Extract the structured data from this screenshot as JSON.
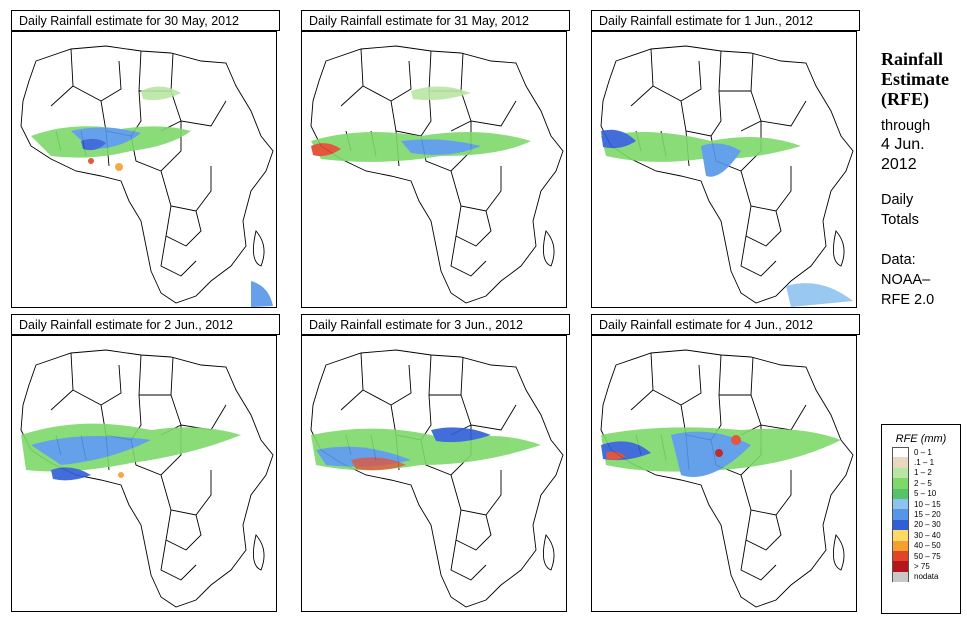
{
  "panels": [
    {
      "title": "Daily Rainfall estimate for  30 May, 2012"
    },
    {
      "title": "Daily Rainfall estimate for  31 May, 2012"
    },
    {
      "title": "Daily Rainfall estimate for  1 Jun., 2012"
    },
    {
      "title": "Daily Rainfall estimate for  2 Jun., 2012"
    },
    {
      "title": "Daily Rainfall estimate for  3 Jun., 2012"
    },
    {
      "title": "Daily Rainfall estimate for  4 Jun., 2012"
    }
  ],
  "side": {
    "title_line1": "Rainfall",
    "title_line2": "Estimate",
    "title_line3": "(RFE)",
    "through": "through",
    "date_line1": "4 Jun.",
    "date_line2": "2012",
    "daily": "Daily",
    "totals": "Totals",
    "data_label": "Data:",
    "source_line1": "NOAA–",
    "source_line2": "RFE 2.0"
  },
  "legend": {
    "title": "RFE (mm)",
    "items": [
      {
        "label": "0 – 1",
        "color": "#ffffff"
      },
      {
        "label": ".1 – 1",
        "color": "#e8d9c0"
      },
      {
        "label": "1 – 2",
        "color": "#b9e6a3"
      },
      {
        "label": "2 – 5",
        "color": "#7ed96a"
      },
      {
        "label": "5 – 10",
        "color": "#55c36b"
      },
      {
        "label": "10 – 15",
        "color": "#8ec3f0"
      },
      {
        "label": "15 – 20",
        "color": "#5596e8"
      },
      {
        "label": "20 – 30",
        "color": "#2f5fd6"
      },
      {
        "label": "30 – 40",
        "color": "#ffd966"
      },
      {
        "label": "40 – 50",
        "color": "#f4a031"
      },
      {
        "label": "50 – 75",
        "color": "#e0452a"
      },
      {
        "label": "> 75",
        "color": "#b5161b"
      },
      {
        "label": "nodata",
        "color": "#c8c8c8"
      }
    ]
  }
}
